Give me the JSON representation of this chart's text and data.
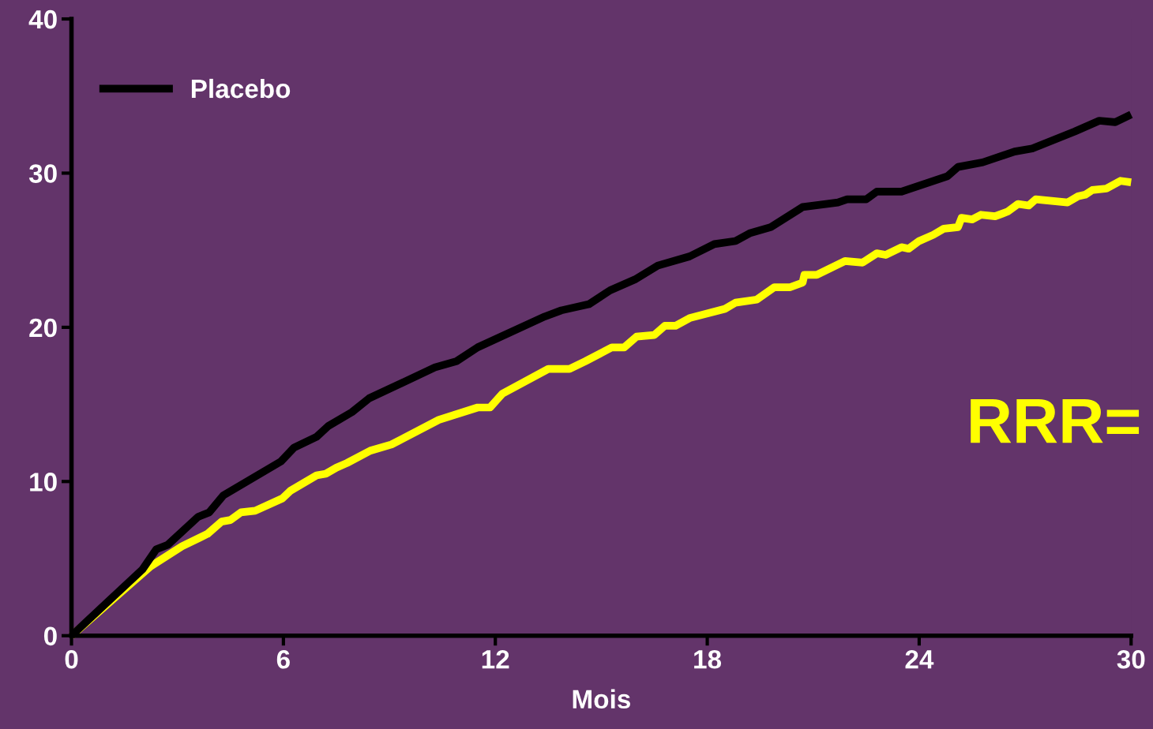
{
  "chart_data": {
    "type": "line",
    "xlabel": "Mois",
    "xlim": [
      0,
      30
    ],
    "xticks": [
      0,
      6,
      12,
      18,
      24,
      30
    ],
    "ylim": [
      0,
      40
    ],
    "yticks": [
      0,
      10,
      20,
      30,
      40
    ],
    "grid": false,
    "legend": "top left",
    "marker": "none",
    "line_style": "solid",
    "annotations": [
      "RRR="
    ],
    "series": [
      {
        "color": "#ffff00",
        "x": [
          0,
          2.24,
          3.13,
          3.85,
          4.25,
          4.5,
          4.8,
          5.2,
          5.97,
          6.2,
          6.94,
          7.2,
          7.5,
          7.8,
          8.46,
          9.06,
          10.4,
          11.5,
          11.85,
          12.2,
          13.5,
          14.1,
          14.55,
          15.3,
          15.65,
          16.0,
          16.5,
          16.8,
          17.1,
          17.5,
          18.5,
          18.8,
          19.4,
          19.9,
          20.35,
          20.7,
          20.75,
          21.1,
          21.9,
          22.4,
          22.8,
          23.05,
          23.5,
          23.7,
          24.0,
          24.4,
          24.7,
          25.1,
          25.2,
          25.5,
          25.75,
          26.15,
          26.5,
          26.8,
          27.1,
          27.3,
          28.2,
          28.5,
          28.7,
          28.9,
          29.3,
          29.7,
          30
        ],
        "values": [
          0,
          4.5,
          5.8,
          6.6,
          7.4,
          7.5,
          8.0,
          8.1,
          8.9,
          9.4,
          10.4,
          10.5,
          10.9,
          11.2,
          12.0,
          12.4,
          14.0,
          14.8,
          14.8,
          15.7,
          17.3,
          17.3,
          17.8,
          18.7,
          18.7,
          19.4,
          19.5,
          20.1,
          20.1,
          20.6,
          21.2,
          21.6,
          21.8,
          22.6,
          22.6,
          22.9,
          23.4,
          23.4,
          24.3,
          24.2,
          24.8,
          24.7,
          25.2,
          25.1,
          25.6,
          26.0,
          26.4,
          26.5,
          27.1,
          27.0,
          27.3,
          27.2,
          27.5,
          28.0,
          27.9,
          28.3,
          28.1,
          28.5,
          28.6,
          28.9,
          29.0,
          29.5,
          29.4
        ]
      },
      {
        "name": "Placebo",
        "color": "#000000",
        "x": [
          0,
          2.01,
          2.4,
          2.73,
          3.58,
          3.9,
          4.3,
          5.93,
          6.3,
          6.94,
          7.27,
          7.94,
          8.43,
          10.29,
          10.9,
          11.5,
          13.4,
          13.87,
          14.65,
          15.25,
          15.95,
          16.6,
          17.5,
          18.2,
          18.8,
          19.2,
          19.8,
          20.7,
          21.7,
          21.96,
          22.5,
          22.8,
          23.5,
          24.8,
          25.1,
          25.8,
          26.7,
          27.2,
          28.4,
          29.1,
          29.55,
          30
        ],
        "values": [
          0,
          4.3,
          5.6,
          5.9,
          7.7,
          8.0,
          9.1,
          11.3,
          12.2,
          12.9,
          13.6,
          14.5,
          15.4,
          17.4,
          17.8,
          18.7,
          20.7,
          21.1,
          21.5,
          22.4,
          23.1,
          24.0,
          24.6,
          25.4,
          25.6,
          26.1,
          26.5,
          27.8,
          28.1,
          28.3,
          28.3,
          28.8,
          28.8,
          29.8,
          30.4,
          30.7,
          31.4,
          31.6,
          32.7,
          33.4,
          33.3,
          33.8
        ]
      }
    ]
  }
}
